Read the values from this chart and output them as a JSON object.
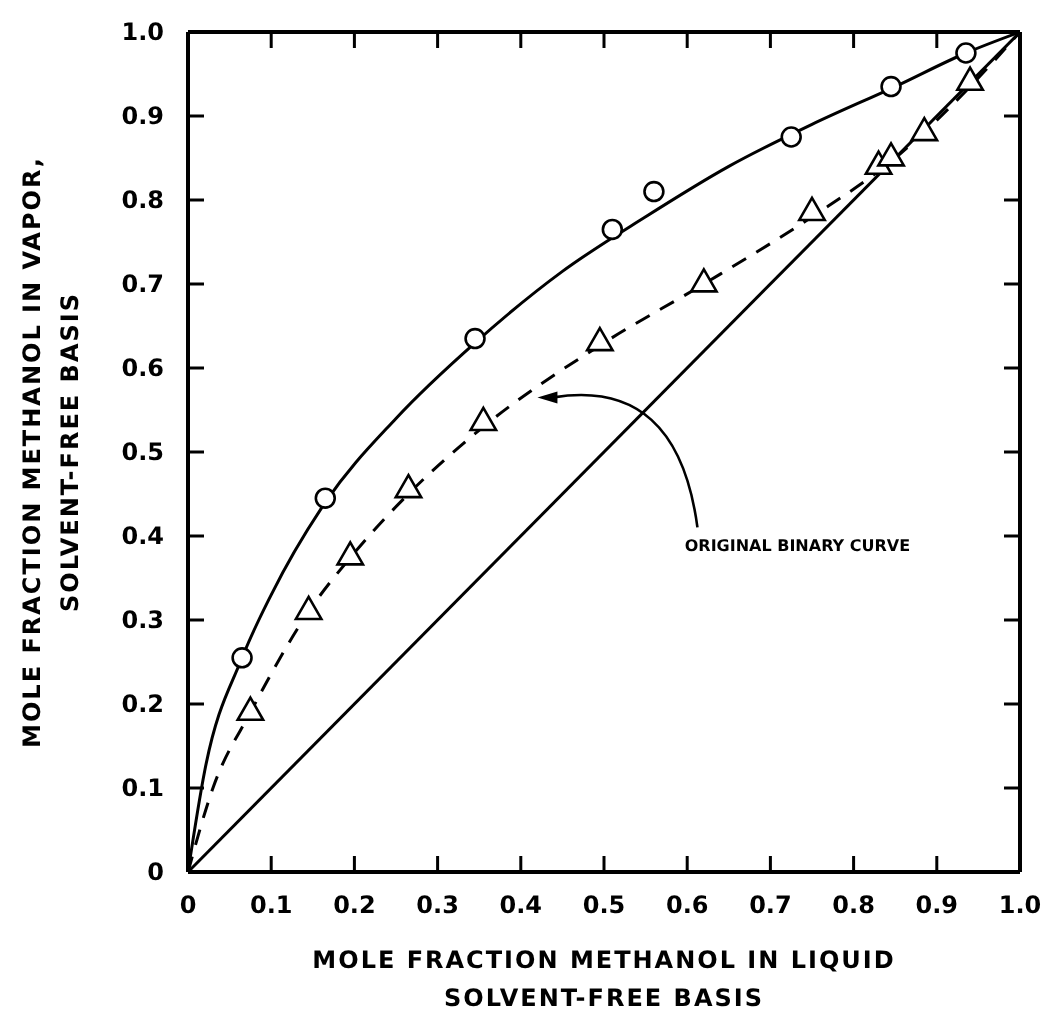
{
  "chart_data": {
    "type": "scatter",
    "xlabel": "MOLE FRACTION METHANOL IN LIQUID\nSOLVENT-FREE BASIS",
    "ylabel": "MOLE FRACTION METHANOL IN VAPOR,\nSOLVENT-FREE BASIS",
    "xlim": [
      0,
      1
    ],
    "ylim": [
      0,
      1
    ],
    "xticks": [
      0,
      0.1,
      0.2,
      0.3,
      0.4,
      0.5,
      0.6,
      0.7,
      0.8,
      0.9,
      {
        "value": 1,
        "label": "1.0"
      }
    ],
    "yticks": [
      0,
      0.1,
      0.2,
      0.3,
      0.4,
      0.5,
      0.6,
      0.7,
      0.8,
      0.9,
      {
        "value": 1,
        "label": "1.0"
      }
    ],
    "grid": false,
    "series": [
      {
        "type": "line",
        "color": "#000000",
        "marker": "none",
        "line_style": "solid",
        "x": [
          0,
          0.02,
          0.065,
          0.1,
          0.165,
          0.25,
          0.345,
          0.45,
          0.55,
          0.65,
          0.75,
          0.85,
          0.935,
          1
        ],
        "values": [
          0,
          0.12,
          0.255,
          0.33,
          0.44,
          0.54,
          0.63,
          0.715,
          0.78,
          0.84,
          0.89,
          0.935,
          0.975,
          1
        ]
      },
      {
        "type": "line",
        "color": "#000000",
        "marker": "none",
        "line_style": "dashed",
        "x": [
          0,
          0.03,
          0.075,
          0.145,
          0.2,
          0.27,
          0.355,
          0.5,
          0.62,
          0.75,
          0.85,
          0.94,
          1
        ],
        "values": [
          0,
          0.1,
          0.19,
          0.31,
          0.38,
          0.455,
          0.53,
          0.63,
          0.7,
          0.78,
          0.85,
          0.935,
          1
        ]
      },
      {
        "type": "line",
        "color": "#000000",
        "marker": "none",
        "line_style": "solid",
        "x": [
          0,
          1
        ],
        "values": [
          0,
          1
        ]
      },
      {
        "color": "#000000",
        "marker": "circle",
        "x": [
          0.065,
          0.165,
          0.345,
          0.51,
          0.56,
          0.725,
          0.845,
          0.935
        ],
        "values": [
          0.255,
          0.445,
          0.635,
          0.765,
          0.81,
          0.875,
          0.935,
          0.975
        ]
      },
      {
        "color": "#000000",
        "marker": "triangle",
        "x": [
          0.075,
          0.145,
          0.195,
          0.265,
          0.355,
          0.495,
          0.62,
          0.75,
          0.83,
          0.845,
          0.885,
          0.94
        ],
        "values": [
          0.19,
          0.31,
          0.375,
          0.455,
          0.535,
          0.63,
          0.7,
          0.785,
          0.84,
          0.85,
          0.88,
          0.94
        ]
      }
    ],
    "annotations": [
      {
        "text": "ORIGINAL BINARY CURVE",
        "x": 0.42,
        "y": 0.565
      }
    ]
  }
}
